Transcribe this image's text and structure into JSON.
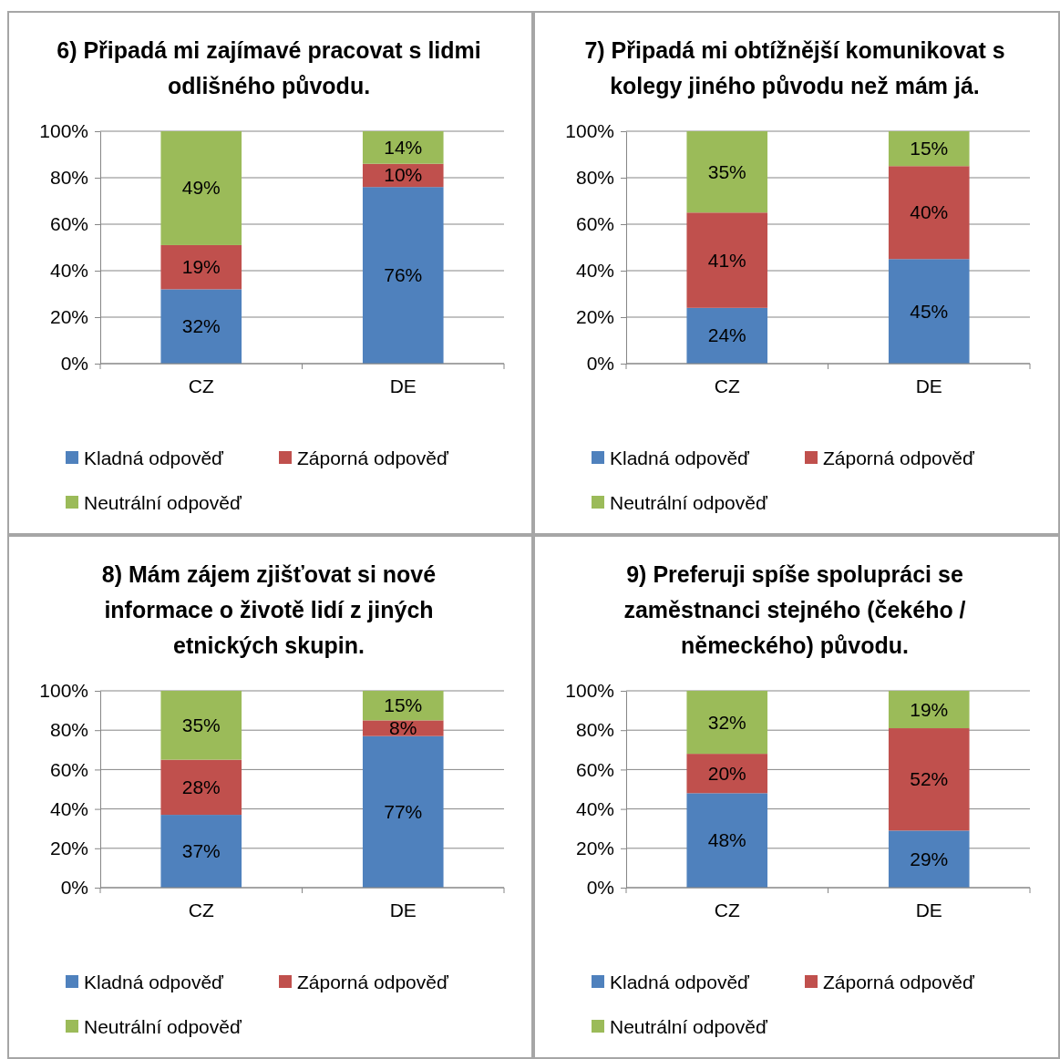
{
  "chart_data": [
    {
      "type": "bar",
      "title": "6) Připadá mi zajímavé pracovat s lidmi odlišného původu.",
      "categories": [
        "CZ",
        "DE"
      ],
      "stacked": true,
      "ylim": [
        0,
        100
      ],
      "yticks": [
        {
          "value": 0,
          "label": "0%"
        },
        {
          "value": 20,
          "label": "20%"
        },
        {
          "value": 40,
          "label": "40%"
        },
        {
          "value": 60,
          "label": "60%"
        },
        {
          "value": 80,
          "label": "80%"
        },
        {
          "value": 100,
          "label": "100%"
        }
      ],
      "grid": "y",
      "legend": "bottom",
      "series": [
        {
          "name": "Kladná odpověď",
          "color": "#4f81bd",
          "values": [
            32,
            76
          ],
          "value_labels": [
            "32%",
            "76%"
          ]
        },
        {
          "name": "Záporná odpověď",
          "color": "#c0504d",
          "values": [
            19,
            10
          ],
          "value_labels": [
            "19%",
            "10%"
          ]
        },
        {
          "name": "Neutrální odpověď",
          "color": "#9bbb59",
          "values": [
            49,
            14
          ],
          "value_labels": [
            "49%",
            "14%"
          ]
        }
      ]
    },
    {
      "type": "bar",
      "title": "7) Připadá mi obtížnější komunikovat s kolegy jiného původu než mám já.",
      "categories": [
        "CZ",
        "DE"
      ],
      "stacked": true,
      "ylim": [
        0,
        100
      ],
      "yticks": [
        {
          "value": 0,
          "label": "0%"
        },
        {
          "value": 20,
          "label": "20%"
        },
        {
          "value": 40,
          "label": "40%"
        },
        {
          "value": 60,
          "label": "60%"
        },
        {
          "value": 80,
          "label": "80%"
        },
        {
          "value": 100,
          "label": "100%"
        }
      ],
      "grid": "y",
      "legend": "bottom",
      "series": [
        {
          "name": "Kladná odpověď",
          "color": "#4f81bd",
          "values": [
            24,
            45
          ],
          "value_labels": [
            "24%",
            "45%"
          ]
        },
        {
          "name": "Záporná odpověď",
          "color": "#c0504d",
          "values": [
            41,
            40
          ],
          "value_labels": [
            "41%",
            "40%"
          ]
        },
        {
          "name": "Neutrální odpověď",
          "color": "#9bbb59",
          "values": [
            35,
            15
          ],
          "value_labels": [
            "35%",
            "15%"
          ]
        }
      ]
    },
    {
      "type": "bar",
      "title": "8) Mám zájem zjišťovat si nové informace o životě lidí z jiných etnických skupin.",
      "categories": [
        "CZ",
        "DE"
      ],
      "stacked": true,
      "ylim": [
        0,
        100
      ],
      "yticks": [
        {
          "value": 0,
          "label": "0%"
        },
        {
          "value": 20,
          "label": "20%"
        },
        {
          "value": 40,
          "label": "40%"
        },
        {
          "value": 60,
          "label": "60%"
        },
        {
          "value": 80,
          "label": "80%"
        },
        {
          "value": 100,
          "label": "100%"
        }
      ],
      "grid": "y",
      "legend": "bottom",
      "series": [
        {
          "name": "Kladná odpověď",
          "color": "#4f81bd",
          "values": [
            37,
            77
          ],
          "value_labels": [
            "37%",
            "77%"
          ]
        },
        {
          "name": "Záporná odpověď",
          "color": "#c0504d",
          "values": [
            28,
            8
          ],
          "value_labels": [
            "28%",
            "8%"
          ]
        },
        {
          "name": "Neutrální odpověď",
          "color": "#9bbb59",
          "values": [
            35,
            15
          ],
          "value_labels": [
            "35%",
            "15%"
          ]
        }
      ]
    },
    {
      "type": "bar",
      "title": "9) Preferuji spíše spolupráci se zaměstnanci stejného (čekého / německého) původu.",
      "categories": [
        "CZ",
        "DE"
      ],
      "stacked": true,
      "ylim": [
        0,
        100
      ],
      "yticks": [
        {
          "value": 0,
          "label": "0%"
        },
        {
          "value": 20,
          "label": "20%"
        },
        {
          "value": 40,
          "label": "40%"
        },
        {
          "value": 60,
          "label": "60%"
        },
        {
          "value": 80,
          "label": "80%"
        },
        {
          "value": 100,
          "label": "100%"
        }
      ],
      "grid": "y",
      "legend": "bottom",
      "series": [
        {
          "name": "Kladná odpověď",
          "color": "#4f81bd",
          "values": [
            48,
            29
          ],
          "value_labels": [
            "48%",
            "29%"
          ]
        },
        {
          "name": "Záporná odpověď",
          "color": "#c0504d",
          "values": [
            20,
            52
          ],
          "value_labels": [
            "20%",
            "52%"
          ]
        },
        {
          "name": "Neutrální odpověď",
          "color": "#9bbb59",
          "values": [
            32,
            19
          ],
          "value_labels": [
            "32%",
            "19%"
          ]
        }
      ]
    }
  ]
}
